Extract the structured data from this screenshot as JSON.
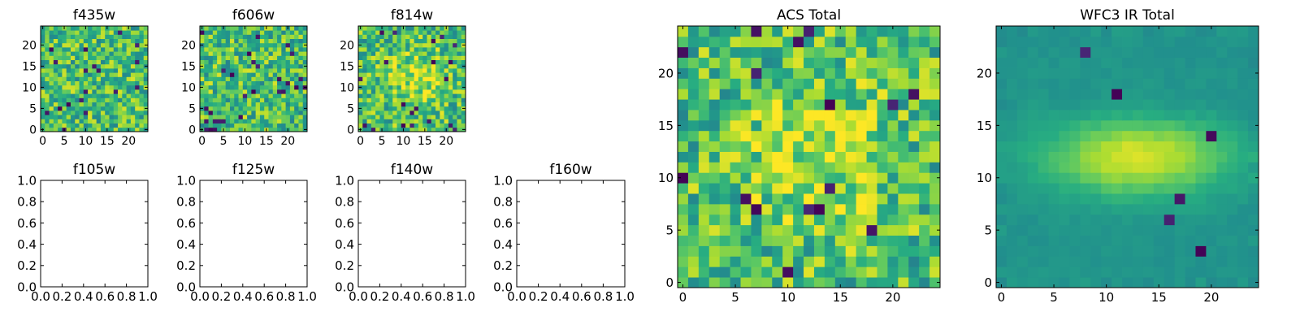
{
  "figure": {
    "background": "#ffffff",
    "colormap": "viridis"
  },
  "chart_data": [
    {
      "type": "heatmap",
      "title": "f435w",
      "xticks": [
        "0",
        "5",
        "10",
        "15",
        "20"
      ],
      "yticks": [
        "0",
        "5",
        "10",
        "15",
        "20"
      ],
      "xlim": [
        -0.5,
        24.5
      ],
      "ylim": [
        -0.5,
        24.5
      ],
      "image": {
        "rows": 25,
        "cols": 25,
        "seed": 435,
        "texture": "pixel-noise",
        "pattern": "uniform",
        "dark_cells": 18
      }
    },
    {
      "type": "heatmap",
      "title": "f606w",
      "xticks": [
        "0",
        "5",
        "10",
        "15",
        "20"
      ],
      "yticks": [
        "0",
        "5",
        "10",
        "15",
        "20"
      ],
      "xlim": [
        -0.5,
        24.5
      ],
      "ylim": [
        -0.5,
        24.5
      ],
      "image": {
        "rows": 25,
        "cols": 25,
        "seed": 606,
        "texture": "pixel-noise",
        "pattern": "uniform",
        "dark_cells": 28
      }
    },
    {
      "type": "heatmap",
      "title": "f814w",
      "xticks": [
        "0",
        "5",
        "10",
        "15",
        "20"
      ],
      "yticks": [
        "0",
        "5",
        "10",
        "15",
        "20"
      ],
      "xlim": [
        -0.5,
        24.5
      ],
      "ylim": [
        -0.5,
        24.5
      ],
      "image": {
        "rows": 25,
        "cols": 25,
        "seed": 814,
        "texture": "pixel-noise",
        "pattern": "central-source",
        "dark_cells": 20
      }
    },
    {
      "type": "empty",
      "title": "f105w",
      "xlim": [
        0,
        1
      ],
      "ylim": [
        0,
        1
      ],
      "xticks": [
        "0.0",
        "0.2",
        "0.4",
        "0.6",
        "0.8",
        "1.0"
      ],
      "yticks": [
        "0.0",
        "0.2",
        "0.4",
        "0.6",
        "0.8",
        "1.0"
      ]
    },
    {
      "type": "empty",
      "title": "f125w",
      "xlim": [
        0,
        1
      ],
      "ylim": [
        0,
        1
      ],
      "xticks": [
        "0.0",
        "0.2",
        "0.4",
        "0.6",
        "0.8",
        "1.0"
      ],
      "yticks": [
        "0.0",
        "0.2",
        "0.4",
        "0.6",
        "0.8",
        "1.0"
      ]
    },
    {
      "type": "empty",
      "title": "f140w",
      "xlim": [
        0,
        1
      ],
      "ylim": [
        0,
        1
      ],
      "xticks": [
        "0.0",
        "0.2",
        "0.4",
        "0.6",
        "0.8",
        "1.0"
      ],
      "yticks": [
        "0.0",
        "0.2",
        "0.4",
        "0.6",
        "0.8",
        "1.0"
      ]
    },
    {
      "type": "empty",
      "title": "f160w",
      "xlim": [
        0,
        1
      ],
      "ylim": [
        0,
        1
      ],
      "xticks": [
        "0.0",
        "0.2",
        "0.4",
        "0.6",
        "0.8",
        "1.0"
      ],
      "yticks": [
        "0.0",
        "0.2",
        "0.4",
        "0.6",
        "0.8",
        "1.0"
      ]
    },
    {
      "type": "heatmap",
      "title": "ACS Total",
      "xticks": [
        "0",
        "5",
        "10",
        "15",
        "20"
      ],
      "yticks": [
        "0",
        "5",
        "10",
        "15",
        "20"
      ],
      "xlim": [
        -0.5,
        24.5
      ],
      "ylim": [
        -0.5,
        24.5
      ],
      "image": {
        "rows": 25,
        "cols": 25,
        "seed": 1001,
        "texture": "pixel-noise",
        "pattern": "central-source",
        "dark_cells": 16
      }
    },
    {
      "type": "heatmap",
      "title": "WFC3 IR Total",
      "xticks": [
        "0",
        "5",
        "10",
        "15",
        "20"
      ],
      "yticks": [
        "0",
        "5",
        "10",
        "15",
        "20"
      ],
      "xlim": [
        -0.5,
        24.5
      ],
      "ylim": [
        -0.5,
        24.5
      ],
      "image": {
        "rows": 25,
        "cols": 25,
        "seed": 2002,
        "texture": "smooth",
        "pattern": "extended-source",
        "dark_cells": 6
      }
    }
  ]
}
